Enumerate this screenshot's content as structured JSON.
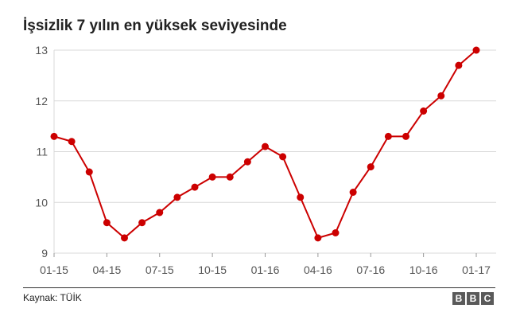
{
  "title": "İşsizlik 7 yılın en yüksek seviyesinde",
  "source": "Kaynak: TÜİK",
  "logo": [
    "B",
    "B",
    "C"
  ],
  "colors": {
    "series": "#cc0000",
    "grid": "#d9d9d9"
  },
  "chart_data": {
    "type": "line",
    "title": "İşsizlik 7 yılın en yüksek seviyesinde",
    "xlabel": "",
    "ylabel": "",
    "ylim": [
      9,
      13
    ],
    "yticks": [
      9,
      10,
      11,
      12,
      13
    ],
    "xtick_labels": [
      "01-15",
      "04-15",
      "07-15",
      "10-15",
      "01-16",
      "04-16",
      "07-16",
      "10-16",
      "01-17"
    ],
    "x": [
      "01-15",
      "02-15",
      "03-15",
      "04-15",
      "05-15",
      "06-15",
      "07-15",
      "08-15",
      "09-15",
      "10-15",
      "11-15",
      "12-15",
      "01-16",
      "02-16",
      "03-16",
      "04-16",
      "05-16",
      "06-16",
      "07-16",
      "08-16",
      "09-16",
      "10-16",
      "11-16",
      "12-16",
      "01-17"
    ],
    "values": [
      11.3,
      11.2,
      10.6,
      9.6,
      9.3,
      9.6,
      9.8,
      10.1,
      10.3,
      10.5,
      10.5,
      10.8,
      11.1,
      10.9,
      10.1,
      9.3,
      9.4,
      10.2,
      10.7,
      11.3,
      11.3,
      11.8,
      12.1,
      12.7,
      13.0
    ],
    "grid": true,
    "legend": "none"
  }
}
